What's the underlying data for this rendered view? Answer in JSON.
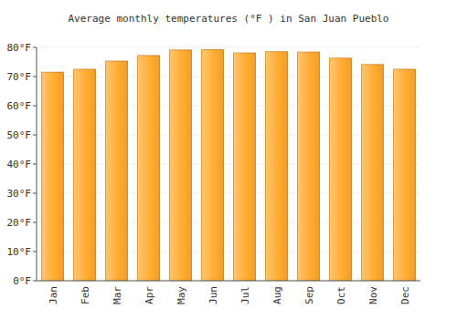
{
  "chart_data": {
    "type": "bar",
    "title": "Average monthly temperatures (°F ) in San Juan Pueblo",
    "categories": [
      "Jan",
      "Feb",
      "Mar",
      "Apr",
      "May",
      "Jun",
      "Jul",
      "Aug",
      "Sep",
      "Oct",
      "Nov",
      "Dec"
    ],
    "values": [
      71.5,
      72.5,
      75.3,
      77.2,
      79.1,
      79.2,
      78.1,
      78.5,
      78.4,
      76.3,
      74.1,
      72.5
    ],
    "color": "#ffa726",
    "ylim": [
      0,
      80
    ],
    "yticks": [
      {
        "value": 0,
        "label": "0°F"
      },
      {
        "value": 10,
        "label": "10°F"
      },
      {
        "value": 20,
        "label": "20°F"
      },
      {
        "value": 30,
        "label": "30°F"
      },
      {
        "value": 40,
        "label": "40°F"
      },
      {
        "value": 50,
        "label": "50°F"
      },
      {
        "value": 60,
        "label": "60°F"
      },
      {
        "value": 70,
        "label": "70°F"
      },
      {
        "value": 80,
        "label": "80°F"
      }
    ],
    "grid": true
  }
}
